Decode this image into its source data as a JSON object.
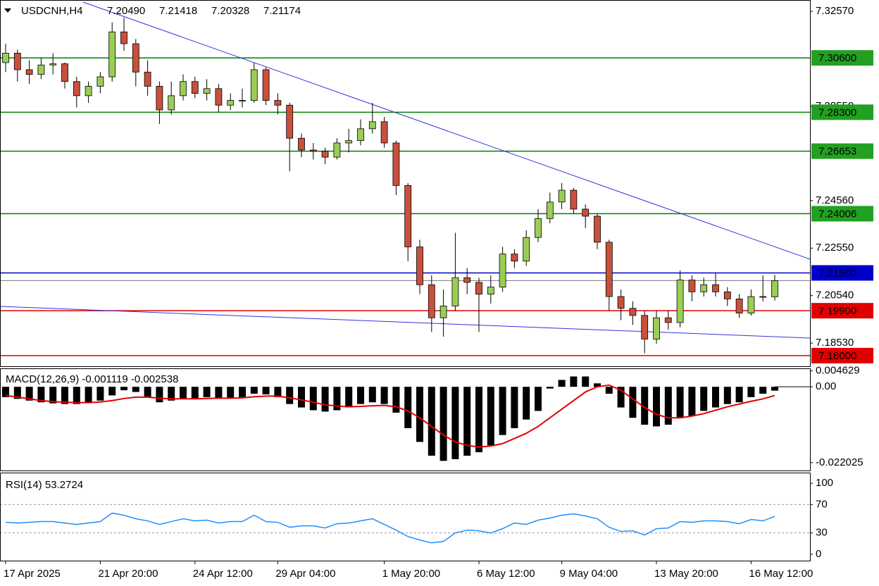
{
  "chart_data": [
    {
      "type": "candlestick",
      "title": "USDCNH,H4",
      "ohlc_labels": [
        "7.20490",
        "7.21418",
        "7.20328",
        "7.21174"
      ],
      "bull_color": "#9acd55",
      "bear_color": "#c8503c",
      "categories": [
        "17 Apr 2025",
        null,
        null,
        null,
        null,
        null,
        null,
        null,
        "21 Apr 20:00",
        null,
        null,
        null,
        null,
        null,
        null,
        null,
        "24 Apr 12:00",
        null,
        null,
        null,
        null,
        null,
        null,
        "29 Apr 04:00",
        null,
        null,
        null,
        null,
        null,
        null,
        null,
        null,
        "1 May 20:00",
        null,
        null,
        null,
        null,
        null,
        null,
        null,
        "6 May 12:00",
        null,
        null,
        null,
        null,
        null,
        null,
        "9 May 04:00",
        null,
        null,
        null,
        null,
        null,
        null,
        null,
        "13 May 20:00",
        null,
        null,
        null,
        null,
        null,
        null,
        null,
        "16 May 12:00",
        null,
        null
      ],
      "candles": [
        [
          7.304,
          7.312,
          7.3,
          7.308
        ],
        [
          7.308,
          7.3095,
          7.296,
          7.301
        ],
        [
          7.301,
          7.305,
          7.295,
          7.299
        ],
        [
          7.299,
          7.306,
          7.297,
          7.303
        ],
        [
          7.303,
          7.308,
          7.299,
          7.3035
        ],
        [
          7.3035,
          7.304,
          7.293,
          7.296
        ],
        [
          7.296,
          7.298,
          7.285,
          7.29
        ],
        [
          7.29,
          7.296,
          7.287,
          7.294
        ],
        [
          7.294,
          7.3,
          7.291,
          7.298
        ],
        [
          7.298,
          7.321,
          7.296,
          7.317
        ],
        [
          7.317,
          7.323,
          7.309,
          7.312
        ],
        [
          7.312,
          7.314,
          7.294,
          7.3
        ],
        [
          7.3,
          7.305,
          7.29,
          7.294
        ],
        [
          7.294,
          7.296,
          7.278,
          7.284
        ],
        [
          7.284,
          7.296,
          7.282,
          7.29
        ],
        [
          7.29,
          7.299,
          7.288,
          7.296
        ],
        [
          7.296,
          7.298,
          7.289,
          7.291
        ],
        [
          7.291,
          7.297,
          7.288,
          7.293
        ],
        [
          7.293,
          7.295,
          7.283,
          7.286
        ],
        [
          7.286,
          7.291,
          7.284,
          7.288
        ],
        [
          7.288,
          7.293,
          7.285,
          7.288
        ],
        [
          7.288,
          7.304,
          7.287,
          7.301
        ],
        [
          7.301,
          7.302,
          7.286,
          7.288
        ],
        [
          7.288,
          7.291,
          7.282,
          7.286
        ],
        [
          7.286,
          7.287,
          7.258,
          7.272
        ],
        [
          7.272,
          7.274,
          7.264,
          7.267
        ],
        [
          7.267,
          7.27,
          7.263,
          7.2665
        ],
        [
          7.2665,
          7.268,
          7.261,
          7.264
        ],
        [
          7.264,
          7.272,
          7.263,
          7.27
        ],
        [
          7.27,
          7.276,
          7.266,
          7.271
        ],
        [
          7.271,
          7.28,
          7.269,
          7.276
        ],
        [
          7.276,
          7.287,
          7.274,
          7.279
        ],
        [
          7.279,
          7.281,
          7.268,
          7.27
        ],
        [
          7.27,
          7.271,
          7.248,
          7.252
        ],
        [
          7.252,
          7.253,
          7.22,
          7.226
        ],
        [
          7.226,
          7.229,
          7.206,
          7.21
        ],
        [
          7.21,
          7.214,
          7.19,
          7.196
        ],
        [
          7.196,
          7.208,
          7.188,
          7.201
        ],
        [
          7.201,
          7.232,
          7.199,
          7.213
        ],
        [
          7.213,
          7.217,
          7.206,
          7.211
        ],
        [
          7.211,
          7.213,
          7.19,
          7.206
        ],
        [
          7.206,
          7.214,
          7.202,
          7.209
        ],
        [
          7.209,
          7.226,
          7.207,
          7.223
        ],
        [
          7.223,
          7.225,
          7.217,
          7.22
        ],
        [
          7.22,
          7.233,
          7.218,
          7.23
        ],
        [
          7.23,
          7.242,
          7.228,
          7.238
        ],
        [
          7.238,
          7.249,
          7.236,
          7.245
        ],
        [
          7.245,
          7.253,
          7.242,
          7.25
        ],
        [
          7.25,
          7.251,
          7.24,
          7.242
        ],
        [
          7.242,
          7.244,
          7.234,
          7.239
        ],
        [
          7.239,
          7.24,
          7.225,
          7.228
        ],
        [
          7.228,
          7.229,
          7.199,
          7.205
        ],
        [
          7.205,
          7.208,
          7.195,
          7.2
        ],
        [
          7.2,
          7.203,
          7.193,
          7.197
        ],
        [
          7.197,
          7.199,
          7.181,
          7.187
        ],
        [
          7.187,
          7.199,
          7.185,
          7.196
        ],
        [
          7.196,
          7.199,
          7.191,
          7.194
        ],
        [
          7.194,
          7.216,
          7.192,
          7.212
        ],
        [
          7.212,
          7.214,
          7.203,
          7.207
        ],
        [
          7.207,
          7.213,
          7.205,
          7.21
        ],
        [
          7.21,
          7.215,
          7.205,
          7.207
        ],
        [
          7.207,
          7.209,
          7.201,
          7.204
        ],
        [
          7.204,
          7.206,
          7.196,
          7.198
        ],
        [
          7.198,
          7.208,
          7.197,
          7.205
        ],
        [
          7.205,
          7.214,
          7.203,
          7.2049
        ],
        [
          7.2049,
          7.21418,
          7.20328,
          7.21174
        ]
      ],
      "ylim": [
        7.1755,
        7.3305
      ],
      "yticks": [
        {
          "value": 7.3257,
          "label": "7.32570"
        },
        {
          "value": 7.2855,
          "label": "7.28550"
        },
        {
          "value": 7.2456,
          "label": "7.24560"
        },
        {
          "value": 7.2255,
          "label": "7.22550"
        },
        {
          "value": 7.2054,
          "label": "7.20540"
        },
        {
          "value": 7.1853,
          "label": "7.18530"
        }
      ],
      "levels": [
        {
          "value": 7.306,
          "label": "7.30600",
          "color": "#008000",
          "text_color": "#000000",
          "box_color": "#22a022"
        },
        {
          "value": 7.283,
          "label": "7.28300",
          "color": "#008000",
          "text_color": "#000000",
          "box_color": "#22a022"
        },
        {
          "value": 7.26653,
          "label": "7.26653",
          "color": "#008000",
          "text_color": "#000000",
          "box_color": "#22a022"
        },
        {
          "value": 7.24006,
          "label": "7.24006",
          "color": "#008000",
          "text_color": "#000000",
          "box_color": "#22a022"
        },
        {
          "value": 7.215,
          "label": "7.21500",
          "color": "#0000cc",
          "text_color": "#ffffff",
          "box_color": "#0000cc"
        },
        {
          "value": 7.199,
          "label": "7.19900",
          "color": "#e00000",
          "text_color": "#ffffff",
          "box_color": "#e00000"
        },
        {
          "value": 7.18,
          "label": "7.18000",
          "color": "#e00000",
          "text_color": "#ffffff",
          "box_color": "#e00000"
        }
      ]
    },
    {
      "type": "macd",
      "title": "MACD(12,26,9) -0.001119 -0.002538",
      "series": [
        {
          "kind": "histogram",
          "color": "#000000",
          "values": [
            -0.003,
            -0.0035,
            -0.004,
            -0.0045,
            -0.0048,
            -0.005,
            -0.005,
            -0.0045,
            -0.004,
            -0.0025,
            -0.001,
            -0.0015,
            -0.003,
            -0.0045,
            -0.004,
            -0.0035,
            -0.0033,
            -0.003,
            -0.0032,
            -0.0033,
            -0.003,
            -0.002,
            -0.0022,
            -0.003,
            -0.005,
            -0.006,
            -0.0068,
            -0.0072,
            -0.0068,
            -0.006,
            -0.005,
            -0.0045,
            -0.005,
            -0.0075,
            -0.012,
            -0.016,
            -0.02,
            -0.0215,
            -0.021,
            -0.02,
            -0.019,
            -0.017,
            -0.014,
            -0.012,
            -0.0095,
            -0.007,
            -0.0005,
            0.002,
            0.003,
            0.003,
            0.001,
            -0.002,
            -0.006,
            -0.009,
            -0.011,
            -0.0115,
            -0.011,
            -0.009,
            -0.0085,
            -0.007,
            -0.006,
            -0.005,
            -0.0045,
            -0.003,
            -0.002,
            -0.001119
          ]
        },
        {
          "kind": "line",
          "color": "#e00000",
          "values": [
            -0.0025,
            -0.003,
            -0.0035,
            -0.004,
            -0.0043,
            -0.0045,
            -0.0046,
            -0.0046,
            -0.0044,
            -0.004,
            -0.0034,
            -0.003,
            -0.003,
            -0.0033,
            -0.0035,
            -0.0035,
            -0.0035,
            -0.0034,
            -0.0033,
            -0.0033,
            -0.0032,
            -0.0029,
            -0.0027,
            -0.0027,
            -0.0032,
            -0.0038,
            -0.0045,
            -0.0052,
            -0.0056,
            -0.0058,
            -0.0057,
            -0.0055,
            -0.0054,
            -0.0058,
            -0.007,
            -0.009,
            -0.0115,
            -0.014,
            -0.016,
            -0.017,
            -0.0175,
            -0.0172,
            -0.0165,
            -0.015,
            -0.0135,
            -0.0115,
            -0.009,
            -0.0065,
            -0.004,
            -0.0015,
            0.0,
            0.0005,
            -0.001,
            -0.0035,
            -0.006,
            -0.008,
            -0.009,
            -0.009,
            -0.0085,
            -0.0078,
            -0.0068,
            -0.0058,
            -0.005,
            -0.0042,
            -0.0035,
            -0.002538
          ]
        }
      ],
      "ylim": [
        -0.0243,
        0.00515
      ],
      "yticks": [
        0.004629,
        {
          "value": 0,
          "label": "0.00"
        },
        -0.022025
      ]
    },
    {
      "type": "rsi",
      "title": "RSI(14) 53.2724",
      "color": "#1e90ff",
      "values": [
        45,
        44,
        45,
        46,
        46,
        44,
        42,
        44,
        46,
        58,
        55,
        50,
        47,
        42,
        46,
        50,
        47,
        48,
        44,
        46,
        46,
        55,
        46,
        45,
        38,
        40,
        40,
        37,
        43,
        44,
        47,
        50,
        42,
        34,
        25,
        20,
        16,
        18,
        30,
        34,
        33,
        30,
        36,
        44,
        42,
        48,
        51,
        55,
        57,
        54,
        50,
        38,
        32,
        33,
        27,
        36,
        37,
        46,
        45,
        47,
        47,
        46,
        43,
        49,
        47,
        53.2724
      ],
      "ylim": [
        -9,
        114
      ],
      "yticks": [
        100,
        70,
        30,
        0
      ],
      "levels": [
        70,
        30
      ]
    }
  ]
}
